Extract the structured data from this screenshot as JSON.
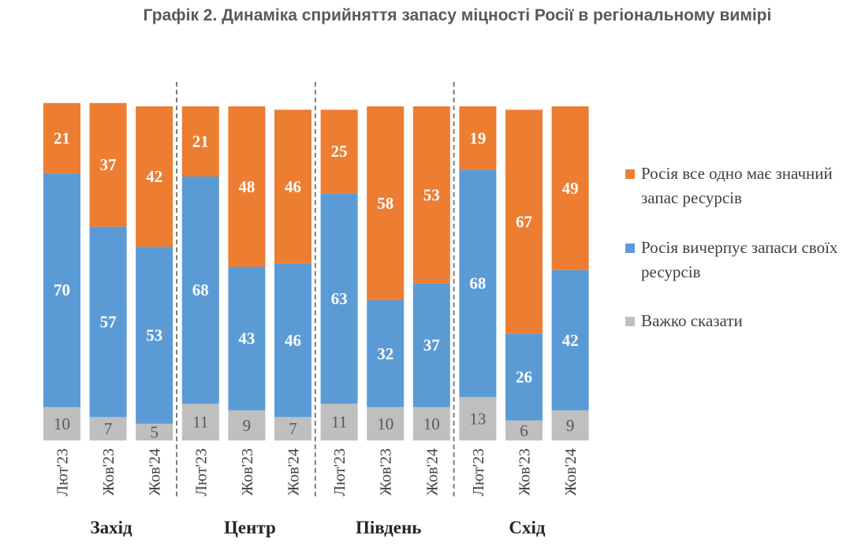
{
  "title": "Графік 2. Динаміка сприйняття запасу міцності Росії в регіональному вимірі",
  "colors": {
    "orange": "#ED7D31",
    "blue": "#5B9BD5",
    "gray": "#BFBFBF"
  },
  "chart_data": {
    "type": "bar",
    "stacked": true,
    "normalized_to": 100,
    "title": "Графік 2. Динаміка сприйняття запасу міцності Росії в регіональному вимірі",
    "legend_position": "right",
    "grid": false,
    "groups": [
      {
        "name": "Захід",
        "categories": [
          "Лют'23",
          "Жов'23",
          "Жов'24"
        ]
      },
      {
        "name": "Центр",
        "categories": [
          "Лют'23",
          "Жов'23",
          "Жов'24"
        ]
      },
      {
        "name": "Південь",
        "categories": [
          "Лют'23",
          "Жов'23",
          "Жов'24"
        ]
      },
      {
        "name": "Схід",
        "categories": [
          "Лют'23",
          "Жов'23",
          "Жов'24"
        ]
      }
    ],
    "series": [
      {
        "name": "Важко сказати",
        "color": "#BFBFBF",
        "values": [
          10,
          7,
          5,
          11,
          9,
          7,
          11,
          10,
          10,
          13,
          6,
          9
        ]
      },
      {
        "name": "Росія вичерпує запаси своїх ресурсів",
        "color": "#5B9BD5",
        "values": [
          70,
          57,
          53,
          68,
          43,
          46,
          63,
          32,
          37,
          68,
          26,
          42
        ]
      },
      {
        "name": "Росія все одно має значний запас ресурсів",
        "color": "#ED7D31",
        "values": [
          21,
          37,
          42,
          21,
          48,
          46,
          25,
          58,
          53,
          19,
          67,
          49
        ]
      }
    ]
  },
  "legend": [
    {
      "label": "Росія все одно має значний запас ресурсів",
      "color": "#ED7D31"
    },
    {
      "label": "Росія вичерпує запаси своїх ресурсів",
      "color": "#5B9BD5"
    },
    {
      "label": "Важко сказати",
      "color": "#BFBFBF"
    }
  ]
}
